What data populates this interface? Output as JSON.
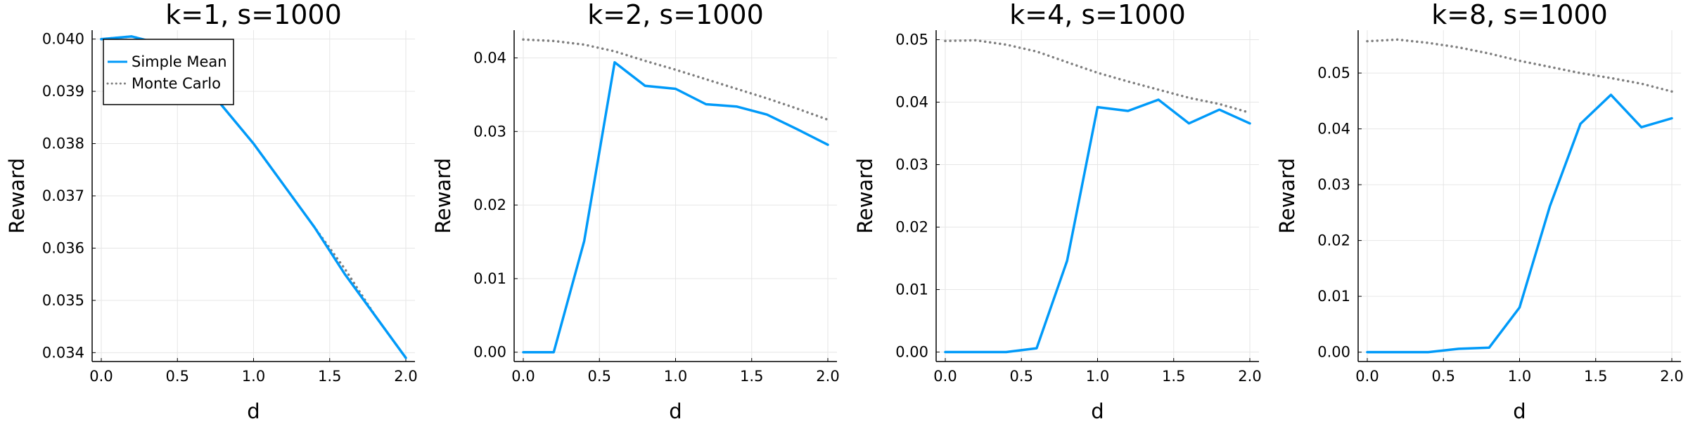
{
  "chart_data": [
    {
      "type": "line",
      "title": "k=1, s=1000",
      "xlabel": "d",
      "ylabel": "Reward",
      "xlim": [
        -0.06,
        2.06
      ],
      "ylim": [
        0.03383,
        0.04017
      ],
      "xticks": [
        0.0,
        0.5,
        1.0,
        1.5,
        2.0
      ],
      "xtick_labels": [
        "0.0",
        "0.5",
        "1.0",
        "1.5",
        "2.0"
      ],
      "yticks": [
        0.034,
        0.035,
        0.036,
        0.037,
        0.038,
        0.039,
        0.04
      ],
      "ytick_labels": [
        "0.034",
        "0.035",
        "0.036",
        "0.037",
        "0.038",
        "0.039",
        "0.040"
      ],
      "grid": true,
      "legend": {
        "position": "top-left",
        "entries": [
          "Simple Mean",
          "Monte Carlo"
        ]
      },
      "series": [
        {
          "name": "Simple Mean",
          "style": "solid",
          "color": "#009AF9",
          "x": [
            0.0,
            0.2,
            0.4,
            0.6,
            0.8,
            1.0,
            1.2,
            1.4,
            1.6,
            1.8,
            2.0
          ],
          "y": [
            0.04,
            0.04005,
            0.0399,
            0.0394,
            0.0387,
            0.038,
            0.0372,
            0.0364,
            0.0355,
            0.0347,
            0.0339
          ]
        },
        {
          "name": "Monte Carlo",
          "style": "dotted",
          "color": "#7F7F7F",
          "x": [
            0.0,
            0.2,
            0.4,
            0.6,
            0.8,
            1.0,
            1.2,
            1.4,
            1.6,
            1.8,
            2.0
          ],
          "y": [
            0.04,
            0.04005,
            0.0399,
            0.0394,
            0.0387,
            0.038,
            0.0372,
            0.0364,
            0.0356,
            0.0347,
            0.0339
          ]
        }
      ]
    },
    {
      "type": "line",
      "title": "k=2, s=1000",
      "xlabel": "d",
      "ylabel": "Reward",
      "xlim": [
        -0.06,
        2.06
      ],
      "ylim": [
        -0.00127,
        0.04377
      ],
      "xticks": [
        0.0,
        0.5,
        1.0,
        1.5,
        2.0
      ],
      "xtick_labels": [
        "0.0",
        "0.5",
        "1.0",
        "1.5",
        "2.0"
      ],
      "yticks": [
        0.0,
        0.01,
        0.02,
        0.03,
        0.04
      ],
      "ytick_labels": [
        "0.00",
        "0.01",
        "0.02",
        "0.03",
        "0.04"
      ],
      "grid": true,
      "series": [
        {
          "name": "Simple Mean",
          "style": "solid",
          "color": "#009AF9",
          "x": [
            0.0,
            0.2,
            0.4,
            0.6,
            0.8,
            1.0,
            1.2,
            1.4,
            1.6,
            1.8,
            2.0
          ],
          "y": [
            0.0,
            0.0,
            0.0151,
            0.0394,
            0.0362,
            0.0358,
            0.0337,
            0.0334,
            0.0323,
            0.0303,
            0.0282
          ]
        },
        {
          "name": "Monte Carlo",
          "style": "dotted",
          "color": "#7F7F7F",
          "x": [
            0.0,
            0.2,
            0.4,
            0.6,
            0.8,
            1.0,
            1.2,
            1.4,
            1.6,
            1.8,
            2.0
          ],
          "y": [
            0.0425,
            0.0423,
            0.0418,
            0.0409,
            0.0396,
            0.0384,
            0.0371,
            0.0358,
            0.0345,
            0.0331,
            0.0316
          ]
        }
      ]
    },
    {
      "type": "line",
      "title": "k=4, s=1000",
      "xlabel": "d",
      "ylabel": "Reward",
      "xlim": [
        -0.06,
        2.06
      ],
      "ylim": [
        -0.00152,
        0.05152
      ],
      "xticks": [
        0.0,
        0.5,
        1.0,
        1.5,
        2.0
      ],
      "xtick_labels": [
        "0.0",
        "0.5",
        "1.0",
        "1.5",
        "2.0"
      ],
      "yticks": [
        0.0,
        0.01,
        0.02,
        0.03,
        0.04,
        0.05
      ],
      "ytick_labels": [
        "0.00",
        "0.01",
        "0.02",
        "0.03",
        "0.04",
        "0.05"
      ],
      "grid": true,
      "series": [
        {
          "name": "Simple Mean",
          "style": "solid",
          "color": "#009AF9",
          "x": [
            0.0,
            0.2,
            0.4,
            0.6,
            0.8,
            1.0,
            1.2,
            1.4,
            1.6,
            1.8,
            2.0
          ],
          "y": [
            0.0,
            0.0,
            0.0,
            0.0006,
            0.0146,
            0.0392,
            0.0386,
            0.0404,
            0.0366,
            0.0388,
            0.0366
          ]
        },
        {
          "name": "Monte Carlo",
          "style": "dotted",
          "color": "#7F7F7F",
          "x": [
            0.0,
            0.2,
            0.4,
            0.6,
            0.8,
            1.0,
            1.2,
            1.4,
            1.6,
            1.8,
            2.0
          ],
          "y": [
            0.0498,
            0.0499,
            0.0492,
            0.0481,
            0.0464,
            0.0447,
            0.0433,
            0.042,
            0.0407,
            0.0397,
            0.0383
          ]
        }
      ]
    },
    {
      "type": "line",
      "title": "k=8, s=1000",
      "xlabel": "d",
      "ylabel": "Reward",
      "xlim": [
        -0.06,
        2.06
      ],
      "ylim": [
        -0.00168,
        0.05768
      ],
      "xticks": [
        0.0,
        0.5,
        1.0,
        1.5,
        2.0
      ],
      "xtick_labels": [
        "0.0",
        "0.5",
        "1.0",
        "1.5",
        "2.0"
      ],
      "yticks": [
        0.0,
        0.01,
        0.02,
        0.03,
        0.04,
        0.05
      ],
      "ytick_labels": [
        "0.00",
        "0.01",
        "0.02",
        "0.03",
        "0.04",
        "0.05"
      ],
      "grid": true,
      "series": [
        {
          "name": "Simple Mean",
          "style": "solid",
          "color": "#009AF9",
          "x": [
            0.0,
            0.2,
            0.4,
            0.6,
            0.8,
            1.0,
            1.2,
            1.4,
            1.6,
            1.8,
            2.0
          ],
          "y": [
            0.0,
            0.0,
            0.0,
            0.0006,
            0.0008,
            0.008,
            0.0262,
            0.0409,
            0.0461,
            0.0403,
            0.0419
          ]
        },
        {
          "name": "Monte Carlo",
          "style": "dotted",
          "color": "#7F7F7F",
          "x": [
            0.0,
            0.2,
            0.4,
            0.6,
            0.8,
            1.0,
            1.2,
            1.4,
            1.6,
            1.8,
            2.0
          ],
          "y": [
            0.0557,
            0.056,
            0.0554,
            0.0546,
            0.0535,
            0.0522,
            0.0511,
            0.05,
            0.0491,
            0.0481,
            0.0467
          ]
        }
      ]
    }
  ]
}
